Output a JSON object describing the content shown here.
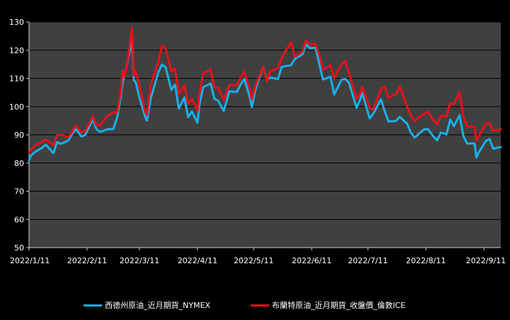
{
  "chart_data": {
    "type": "line",
    "title": "",
    "xlabel": "",
    "ylabel": "",
    "ylim": [
      50,
      130
    ],
    "y_ticks": [
      50,
      60,
      70,
      80,
      90,
      100,
      110,
      120,
      130
    ],
    "x_ticks": [
      "2022/1/11",
      "2022/2/11",
      "2022/3/11",
      "2022/4/11",
      "2022/5/11",
      "2022/6/11",
      "2022/7/11",
      "2022/8/11",
      "2022/9/11"
    ],
    "x_tick_dates": [
      "2022-01-11",
      "2022-02-11",
      "2022-03-11",
      "2022-04-11",
      "2022-05-11",
      "2022-06-11",
      "2022-07-11",
      "2022-08-11",
      "2022-09-11"
    ],
    "xlim": [
      "2022-01-11",
      "2022-09-20"
    ],
    "grid": true,
    "legend_position": "bottom",
    "colors": {
      "background": "#000000",
      "plot_background": "#404040",
      "grid": "#000000"
    },
    "series": [
      {
        "name": "西德州原油_近月期貨_NYMEX",
        "color": "#1ab0e8",
        "points": [
          [
            "2022-01-11",
            81
          ],
          [
            "2022-01-12",
            82.6
          ],
          [
            "2022-01-14",
            83.8
          ],
          [
            "2022-01-18",
            85.4
          ],
          [
            "2022-01-20",
            86.5
          ],
          [
            "2022-01-24",
            83.5
          ],
          [
            "2022-01-26",
            87.4
          ],
          [
            "2022-01-28",
            86.8
          ],
          [
            "2022-02-01",
            88
          ],
          [
            "2022-02-03",
            90.3
          ],
          [
            "2022-02-05",
            92
          ],
          [
            "2022-02-08",
            89.4
          ],
          [
            "2022-02-10",
            89.9
          ],
          [
            "2022-02-14",
            95.5
          ],
          [
            "2022-02-16",
            92
          ],
          [
            "2022-02-18",
            91
          ],
          [
            "2022-02-22",
            92
          ],
          [
            "2022-02-25",
            92
          ],
          [
            "2022-02-27",
            96
          ],
          [
            "2022-03-01",
            103.4
          ],
          [
            "2022-03-02",
            108.5
          ],
          [
            "2022-03-03",
            111
          ],
          [
            "2022-03-05",
            117
          ],
          [
            "2022-03-07",
            123.7
          ],
          [
            "2022-03-08",
            109.3
          ],
          [
            "2022-03-09",
            108.7
          ],
          [
            "2022-03-11",
            103
          ],
          [
            "2022-03-14",
            96.4
          ],
          [
            "2022-03-15",
            95
          ],
          [
            "2022-03-17",
            102.9
          ],
          [
            "2022-03-21",
            112
          ],
          [
            "2022-03-23",
            114.9
          ],
          [
            "2022-03-25",
            113.9
          ],
          [
            "2022-03-28",
            105.9
          ],
          [
            "2022-03-30",
            107.8
          ],
          [
            "2022-04-01",
            99.3
          ],
          [
            "2022-04-04",
            103.2
          ],
          [
            "2022-04-06",
            96.2
          ],
          [
            "2022-04-08",
            98.3
          ],
          [
            "2022-04-11",
            94.3
          ],
          [
            "2022-04-12",
            100.6
          ],
          [
            "2022-04-14",
            106.9
          ],
          [
            "2022-04-18",
            108.2
          ],
          [
            "2022-04-20",
            102.8
          ],
          [
            "2022-04-22",
            102.1
          ],
          [
            "2022-04-25",
            98.5
          ],
          [
            "2022-04-28",
            105.4
          ],
          [
            "2022-05-02",
            105.2
          ],
          [
            "2022-05-04",
            107.8
          ],
          [
            "2022-05-06",
            109.8
          ],
          [
            "2022-05-09",
            103.1
          ],
          [
            "2022-05-10",
            99.8
          ],
          [
            "2022-05-12",
            106.1
          ],
          [
            "2022-05-16",
            114.2
          ],
          [
            "2022-05-18",
            109.6
          ],
          [
            "2022-05-20",
            110.3
          ],
          [
            "2022-05-24",
            109.8
          ],
          [
            "2022-05-26",
            114.1
          ],
          [
            "2022-05-31",
            114.7
          ],
          [
            "2022-06-02",
            116.9
          ],
          [
            "2022-06-06",
            118.5
          ],
          [
            "2022-06-08",
            122.1
          ],
          [
            "2022-06-10",
            120.7
          ],
          [
            "2022-06-13",
            120.9
          ],
          [
            "2022-06-15",
            115.3
          ],
          [
            "2022-06-17",
            109.6
          ],
          [
            "2022-06-21",
            110.6
          ],
          [
            "2022-06-23",
            104.3
          ],
          [
            "2022-06-27",
            109.6
          ],
          [
            "2022-06-29",
            109.8
          ],
          [
            "2022-07-01",
            108.4
          ],
          [
            "2022-07-05",
            99.5
          ],
          [
            "2022-07-07",
            102.7
          ],
          [
            "2022-07-08",
            104.8
          ],
          [
            "2022-07-12",
            95.8
          ],
          [
            "2022-07-14",
            97.6
          ],
          [
            "2022-07-18",
            102.6
          ],
          [
            "2022-07-20",
            98.4
          ],
          [
            "2022-07-22",
            94.7
          ],
          [
            "2022-07-26",
            94.9
          ],
          [
            "2022-07-28",
            96.4
          ],
          [
            "2022-08-01",
            93.9
          ],
          [
            "2022-08-03",
            90.7
          ],
          [
            "2022-08-05",
            89
          ],
          [
            "2022-08-08",
            90.8
          ],
          [
            "2022-08-10",
            91.9
          ],
          [
            "2022-08-12",
            92.1
          ],
          [
            "2022-08-15",
            89.4
          ],
          [
            "2022-08-17",
            88.1
          ],
          [
            "2022-08-19",
            90.8
          ],
          [
            "2022-08-22",
            90.2
          ],
          [
            "2022-08-24",
            95.4
          ],
          [
            "2022-08-26",
            93.1
          ],
          [
            "2022-08-29",
            97
          ],
          [
            "2022-08-31",
            89.6
          ],
          [
            "2022-09-02",
            86.9
          ],
          [
            "2022-09-06",
            86.9
          ],
          [
            "2022-09-07",
            81.9
          ],
          [
            "2022-09-08",
            83.5
          ],
          [
            "2022-09-12",
            87.8
          ],
          [
            "2022-09-14",
            88.5
          ],
          [
            "2022-09-16",
            85.1
          ],
          [
            "2022-09-20",
            85.7
          ]
        ]
      },
      {
        "name": "布蘭特原油_近月期貨_收盤價_倫敦ICE",
        "color": "#e8101a",
        "points": [
          [
            "2022-01-11",
            83.7
          ],
          [
            "2022-01-12",
            84.7
          ],
          [
            "2022-01-14",
            86.1
          ],
          [
            "2022-01-18",
            87.5
          ],
          [
            "2022-01-20",
            88.4
          ],
          [
            "2022-01-24",
            86.3
          ],
          [
            "2022-01-26",
            89.9
          ],
          [
            "2022-01-28",
            90
          ],
          [
            "2022-02-01",
            89.2
          ],
          [
            "2022-02-03",
            91.1
          ],
          [
            "2022-02-05",
            93.3
          ],
          [
            "2022-02-08",
            90.8
          ],
          [
            "2022-02-10",
            91.4
          ],
          [
            "2022-02-14",
            96.5
          ],
          [
            "2022-02-16",
            93.3
          ],
          [
            "2022-02-18",
            93.5
          ],
          [
            "2022-02-22",
            96.8
          ],
          [
            "2022-02-25",
            97.9
          ],
          [
            "2022-02-27",
            98
          ],
          [
            "2022-03-01",
            105
          ],
          [
            "2022-03-02",
            112.9
          ],
          [
            "2022-03-03",
            110.5
          ],
          [
            "2022-03-05",
            118
          ],
          [
            "2022-03-07",
            128
          ],
          [
            "2022-03-08",
            111.1
          ],
          [
            "2022-03-09",
            112.7
          ],
          [
            "2022-03-11",
            107.2
          ],
          [
            "2022-03-14",
            98.2
          ],
          [
            "2022-03-15",
            97
          ],
          [
            "2022-03-17",
            107.9
          ],
          [
            "2022-03-21",
            115.6
          ],
          [
            "2022-03-23",
            121.6
          ],
          [
            "2022-03-25",
            120.6
          ],
          [
            "2022-03-28",
            112.5
          ],
          [
            "2022-03-30",
            113.5
          ],
          [
            "2022-04-01",
            104.4
          ],
          [
            "2022-04-04",
            107.5
          ],
          [
            "2022-04-06",
            101.1
          ],
          [
            "2022-04-08",
            102.8
          ],
          [
            "2022-04-11",
            98.5
          ],
          [
            "2022-04-12",
            104.6
          ],
          [
            "2022-04-14",
            111.7
          ],
          [
            "2022-04-18",
            113.2
          ],
          [
            "2022-04-20",
            106.8
          ],
          [
            "2022-04-22",
            106.7
          ],
          [
            "2022-04-25",
            102.3
          ],
          [
            "2022-04-28",
            107.6
          ],
          [
            "2022-05-02",
            107.6
          ],
          [
            "2022-05-04",
            110.1
          ],
          [
            "2022-05-06",
            112.4
          ],
          [
            "2022-05-09",
            105.9
          ],
          [
            "2022-05-10",
            102.5
          ],
          [
            "2022-05-12",
            107.5
          ],
          [
            "2022-05-16",
            114.2
          ],
          [
            "2022-05-18",
            109.1
          ],
          [
            "2022-05-20",
            112.6
          ],
          [
            "2022-05-24",
            113.6
          ],
          [
            "2022-05-26",
            117.4
          ],
          [
            "2022-05-31",
            122.8
          ],
          [
            "2022-06-02",
            117.6
          ],
          [
            "2022-06-06",
            119.5
          ],
          [
            "2022-06-08",
            123.6
          ],
          [
            "2022-06-10",
            122
          ],
          [
            "2022-06-13",
            122.3
          ],
          [
            "2022-06-15",
            118.5
          ],
          [
            "2022-06-17",
            113.1
          ],
          [
            "2022-06-21",
            114.7
          ],
          [
            "2022-06-23",
            110
          ],
          [
            "2022-06-27",
            115.1
          ],
          [
            "2022-06-29",
            116.3
          ],
          [
            "2022-07-01",
            111.6
          ],
          [
            "2022-07-05",
            102.8
          ],
          [
            "2022-07-07",
            104.7
          ],
          [
            "2022-07-08",
            107
          ],
          [
            "2022-07-12",
            99.5
          ],
          [
            "2022-07-14",
            99.1
          ],
          [
            "2022-07-18",
            106.3
          ],
          [
            "2022-07-20",
            106.9
          ],
          [
            "2022-07-22",
            103.2
          ],
          [
            "2022-07-26",
            104.4
          ],
          [
            "2022-07-28",
            107.1
          ],
          [
            "2022-08-01",
            100
          ],
          [
            "2022-08-03",
            96.8
          ],
          [
            "2022-08-05",
            94.9
          ],
          [
            "2022-08-08",
            96.6
          ],
          [
            "2022-08-10",
            97.4
          ],
          [
            "2022-08-12",
            98.2
          ],
          [
            "2022-08-15",
            95.1
          ],
          [
            "2022-08-17",
            93.7
          ],
          [
            "2022-08-19",
            96.7
          ],
          [
            "2022-08-22",
            96.5
          ],
          [
            "2022-08-24",
            101.2
          ],
          [
            "2022-08-26",
            100.9
          ],
          [
            "2022-08-29",
            105.1
          ],
          [
            "2022-08-31",
            96.5
          ],
          [
            "2022-09-02",
            93
          ],
          [
            "2022-09-06",
            92.8
          ],
          [
            "2022-09-07",
            88
          ],
          [
            "2022-09-08",
            89.2
          ],
          [
            "2022-09-12",
            94
          ],
          [
            "2022-09-14",
            94.1
          ],
          [
            "2022-09-16",
            91.4
          ],
          [
            "2022-09-20",
            92
          ]
        ]
      }
    ]
  }
}
